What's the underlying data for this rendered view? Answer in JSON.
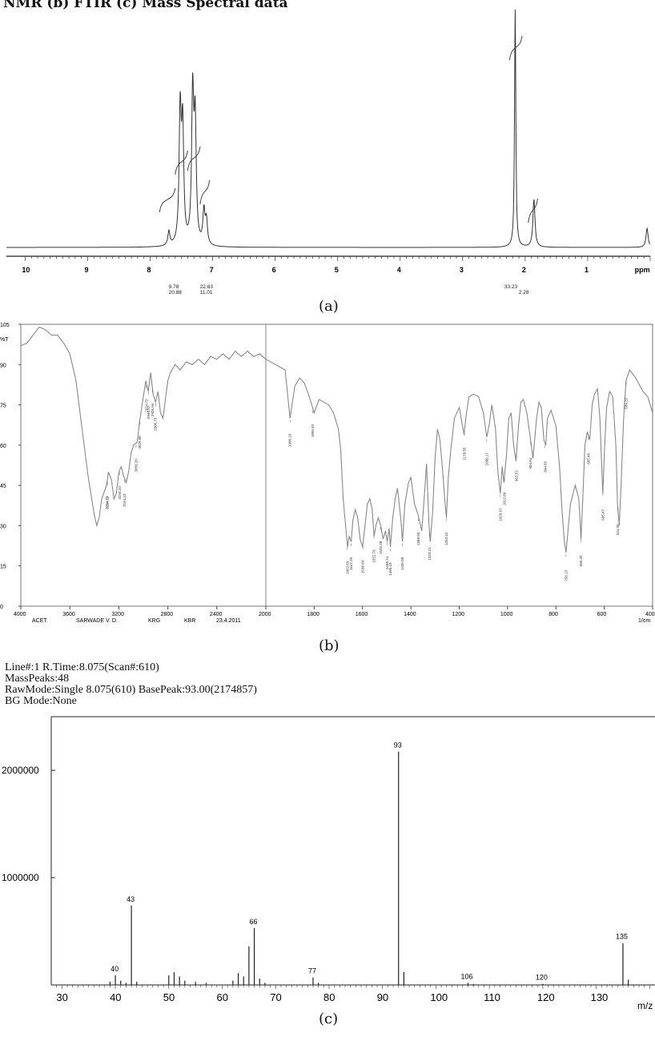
{
  "header": "NMR (b) FTIR (c) Mass Spectral data",
  "captions": {
    "a": "(a)",
    "b": "(b)",
    "c": "(c)"
  },
  "chart_data": [
    {
      "id": "nmr",
      "type": "line",
      "x_unit": "ppm",
      "x_ticks": [
        "10",
        "9",
        "8",
        "7",
        "6",
        "5",
        "4",
        "3",
        "2",
        "1",
        "ppm"
      ],
      "xlim": [
        10.3,
        0.0
      ],
      "peaks": [
        {
          "x": 7.7,
          "h": 0.06
        },
        {
          "x": 7.52,
          "h": 0.55
        },
        {
          "x": 7.48,
          "h": 0.48
        },
        {
          "x": 7.32,
          "h": 0.62
        },
        {
          "x": 7.28,
          "h": 0.5
        },
        {
          "x": 7.14,
          "h": 0.14
        },
        {
          "x": 7.1,
          "h": 0.1
        },
        {
          "x": 2.16,
          "h": 1.0
        },
        {
          "x": 1.86,
          "h": 0.2
        },
        {
          "x": 0.05,
          "h": 0.08
        }
      ],
      "integrations": [
        "9.78",
        "22.83",
        "20.88",
        "11.01",
        "33.23",
        "2.28"
      ]
    },
    {
      "id": "ftir",
      "type": "line",
      "y_label": "%T",
      "y_ticks": [
        "105",
        "90",
        "75",
        "60",
        "45",
        "30",
        "15",
        "0"
      ],
      "ylim": [
        0,
        105
      ],
      "x_ticks": [
        "4000",
        "3600",
        "3200",
        "2800",
        "2400",
        "2000",
        "1800",
        "1600",
        "1400",
        "1200",
        "1000",
        "800",
        "600",
        "400"
      ],
      "x_unit": "1/cm",
      "sample_info": [
        "ACET",
        "SARWADE V. D.",
        "KRG",
        "KBR",
        "23.4.2011"
      ],
      "points": [
        [
          4000,
          97
        ],
        [
          3950,
          98
        ],
        [
          3900,
          101
        ],
        [
          3850,
          104
        ],
        [
          3800,
          103
        ],
        [
          3750,
          101
        ],
        [
          3700,
          101
        ],
        [
          3650,
          98
        ],
        [
          3600,
          94
        ],
        [
          3550,
          84
        ],
        [
          3500,
          66
        ],
        [
          3450,
          48
        ],
        [
          3400,
          34
        ],
        [
          3380,
          30
        ],
        [
          3360,
          33
        ],
        [
          3340,
          40
        ],
        [
          3300,
          45
        ],
        [
          3285,
          50
        ],
        [
          3260,
          47
        ],
        [
          3240,
          40
        ],
        [
          3220,
          42
        ],
        [
          3200,
          50
        ],
        [
          3180,
          52
        ],
        [
          3165,
          49
        ],
        [
          3140,
          46
        ],
        [
          3120,
          50
        ],
        [
          3100,
          57
        ],
        [
          3080,
          60
        ],
        [
          3050,
          61
        ],
        [
          3030,
          69
        ],
        [
          3000,
          78
        ],
        [
          2980,
          84
        ],
        [
          2960,
          80
        ],
        [
          2940,
          87
        ],
        [
          2920,
          79
        ],
        [
          2900,
          76
        ],
        [
          2880,
          80
        ],
        [
          2860,
          72
        ],
        [
          2840,
          70
        ],
        [
          2820,
          77
        ],
        [
          2800,
          84
        ],
        [
          2780,
          87
        ],
        [
          2740,
          90
        ],
        [
          2700,
          88
        ],
        [
          2650,
          91
        ],
        [
          2600,
          90
        ],
        [
          2550,
          92
        ],
        [
          2500,
          90
        ],
        [
          2450,
          93
        ],
        [
          2400,
          92
        ],
        [
          2350,
          94
        ],
        [
          2300,
          92
        ],
        [
          2250,
          95
        ],
        [
          2200,
          93
        ],
        [
          2150,
          95
        ],
        [
          2100,
          93
        ],
        [
          2050,
          94
        ],
        [
          2000,
          92
        ],
        [
          1960,
          90
        ],
        [
          1920,
          88
        ],
        [
          1900,
          70
        ],
        [
          1880,
          82
        ],
        [
          1860,
          85
        ],
        [
          1840,
          83
        ],
        [
          1820,
          78
        ],
        [
          1800,
          72
        ],
        [
          1780,
          77
        ],
        [
          1760,
          76
        ],
        [
          1740,
          75
        ],
        [
          1720,
          72
        ],
        [
          1700,
          66
        ],
        [
          1690,
          58
        ],
        [
          1680,
          40
        ],
        [
          1670,
          30
        ],
        [
          1662,
          22
        ],
        [
          1655,
          26
        ],
        [
          1647,
          24
        ],
        [
          1640,
          32
        ],
        [
          1630,
          36
        ],
        [
          1620,
          33
        ],
        [
          1610,
          25
        ],
        [
          1600,
          22
        ],
        [
          1590,
          30
        ],
        [
          1580,
          38
        ],
        [
          1570,
          40
        ],
        [
          1560,
          36
        ],
        [
          1552,
          26
        ],
        [
          1545,
          30
        ],
        [
          1535,
          33
        ],
        [
          1525,
          30
        ],
        [
          1515,
          25
        ],
        [
          1505,
          28
        ],
        [
          1498,
          24
        ],
        [
          1490,
          29
        ],
        [
          1485,
          22
        ],
        [
          1475,
          33
        ],
        [
          1465,
          40
        ],
        [
          1455,
          44
        ],
        [
          1440,
          31
        ],
        [
          1435,
          24
        ],
        [
          1425,
          38
        ],
        [
          1410,
          46
        ],
        [
          1400,
          48
        ],
        [
          1385,
          38
        ],
        [
          1370,
          34
        ],
        [
          1355,
          28
        ],
        [
          1345,
          40
        ],
        [
          1335,
          53
        ],
        [
          1325,
          30
        ],
        [
          1320,
          24
        ],
        [
          1310,
          35
        ],
        [
          1300,
          55
        ],
        [
          1290,
          66
        ],
        [
          1280,
          62
        ],
        [
          1270,
          52
        ],
        [
          1260,
          40
        ],
        [
          1253,
          33
        ],
        [
          1245,
          48
        ],
        [
          1235,
          58
        ],
        [
          1220,
          70
        ],
        [
          1200,
          74
        ],
        [
          1180,
          64
        ],
        [
          1170,
          72
        ],
        [
          1160,
          78
        ],
        [
          1140,
          79
        ],
        [
          1120,
          78
        ],
        [
          1100,
          72
        ],
        [
          1086,
          63
        ],
        [
          1075,
          68
        ],
        [
          1065,
          75
        ],
        [
          1050,
          66
        ],
        [
          1040,
          50
        ],
        [
          1030,
          42
        ],
        [
          1022,
          52
        ],
        [
          1015,
          46
        ],
        [
          1005,
          56
        ],
        [
          995,
          70
        ],
        [
          985,
          72
        ],
        [
          975,
          60
        ],
        [
          965,
          54
        ],
        [
          955,
          67
        ],
        [
          945,
          76
        ],
        [
          935,
          77
        ],
        [
          920,
          72
        ],
        [
          905,
          62
        ],
        [
          895,
          55
        ],
        [
          880,
          70
        ],
        [
          870,
          76
        ],
        [
          860,
          74
        ],
        [
          850,
          62
        ],
        [
          842,
          60
        ],
        [
          835,
          70
        ],
        [
          820,
          73
        ],
        [
          800,
          67
        ],
        [
          785,
          52
        ],
        [
          775,
          36
        ],
        [
          765,
          24
        ],
        [
          758,
          20
        ],
        [
          750,
          28
        ],
        [
          740,
          38
        ],
        [
          720,
          45
        ],
        [
          705,
          40
        ],
        [
          696,
          25
        ],
        [
          690,
          38
        ],
        [
          680,
          60
        ],
        [
          670,
          65
        ],
        [
          660,
          62
        ],
        [
          650,
          75
        ],
        [
          640,
          79
        ],
        [
          628,
          81
        ],
        [
          618,
          70
        ],
        [
          606,
          42
        ],
        [
          598,
          60
        ],
        [
          590,
          74
        ],
        [
          578,
          80
        ],
        [
          565,
          78
        ],
        [
          552,
          60
        ],
        [
          545,
          38
        ],
        [
          538,
          30
        ],
        [
          530,
          46
        ],
        [
          520,
          70
        ],
        [
          510,
          84
        ],
        [
          495,
          88
        ],
        [
          470,
          85
        ],
        [
          440,
          80
        ],
        [
          420,
          78
        ],
        [
          400,
          72
        ]
      ],
      "peak_labels": [
        "3294.53",
        "3294.27",
        "3194.23",
        "3154.43",
        "3059.20",
        "3029.00",
        "2974.73",
        "2926.04",
        "2958.57",
        "2900.73",
        "1900.10",
        "1805.43",
        "1662.69",
        "1598.84",
        "1647.28",
        "1552.76",
        "1525.38",
        "1498.74",
        "1485.10",
        "1435.08",
        "1368.50",
        "1323.21",
        "1253.42",
        "1178.55",
        "1086.17",
        "1029.67",
        "1012.66",
        "962.51",
        "904.84",
        "844.65",
        "758.13",
        "696.33",
        "665.46",
        "605.67",
        "544.30",
        "509.22"
      ]
    },
    {
      "id": "ms",
      "type": "bar",
      "info": [
        "Line#:1  R.Time:8.075(Scan#:610)",
        "MassPeaks:48",
        "RawMode:Single 8.075(610)  BasePeak:93.00(2174857)",
        "BG Mode:None"
      ],
      "xlabel": "m/z",
      "x_ticks": [
        "30",
        "40",
        "50",
        "60",
        "70",
        "80",
        "90",
        "100",
        "110",
        "120",
        "130"
      ],
      "xlim": [
        28,
        141
      ],
      "y_ticks": [
        "2000000",
        "1000000"
      ],
      "ylim": [
        0,
        2500000
      ],
      "x": [
        39,
        40,
        41,
        42,
        43,
        44,
        50,
        51,
        52,
        53,
        55,
        57,
        62,
        63,
        64,
        65,
        66,
        67,
        68,
        77,
        78,
        93,
        94,
        106,
        107,
        120,
        135,
        136
      ],
      "values": [
        30000,
        90000,
        40000,
        20000,
        740000,
        30000,
        90000,
        120000,
        80000,
        40000,
        30000,
        20000,
        40000,
        110000,
        80000,
        360000,
        530000,
        60000,
        20000,
        70000,
        20000,
        2174857,
        120000,
        20000,
        10000,
        10000,
        390000,
        50000
      ],
      "labeled": [
        {
          "x": 40,
          "label": "40"
        },
        {
          "x": 43,
          "label": "43"
        },
        {
          "x": 66,
          "label": "66"
        },
        {
          "x": 77,
          "label": "77"
        },
        {
          "x": 93,
          "label": "93"
        },
        {
          "x": 106,
          "label": "106"
        },
        {
          "x": 120,
          "label": "120"
        },
        {
          "x": 135,
          "label": "135"
        }
      ]
    }
  ]
}
